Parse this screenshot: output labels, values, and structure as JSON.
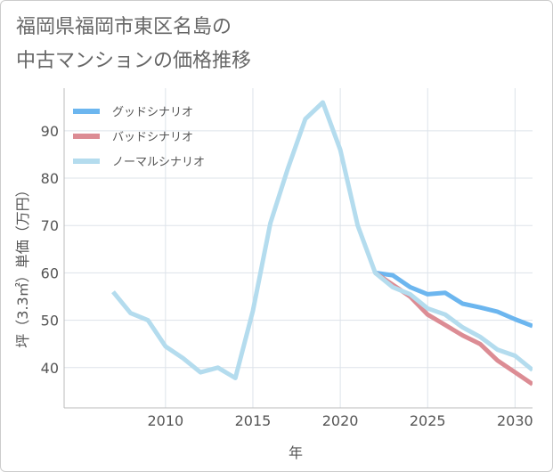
{
  "title_line1": "福岡県福岡市東区名島の",
  "title_line2": "中古マンションの価格推移",
  "chart_data": {
    "type": "line",
    "xlabel": "年",
    "ylabel": "坪（3.3㎡）単価（万円）",
    "xlim": [
      2004.2,
      2031.0
    ],
    "ylim": [
      31.5,
      99.0
    ],
    "x_ticks": [
      2010,
      2015,
      2020,
      2025,
      2030
    ],
    "y_ticks": [
      40,
      50,
      60,
      70,
      80,
      90
    ],
    "grid": true,
    "legend_position": "top-left",
    "series": [
      {
        "name": "グッドシナリオ",
        "color": "#6cb6ef",
        "x": [
          2022,
          2023,
          2024,
          2025,
          2026,
          2027,
          2028,
          2029,
          2030,
          2031
        ],
        "values": [
          60.0,
          59.5,
          57.0,
          55.5,
          55.8,
          53.5,
          52.7,
          51.8,
          50.2,
          48.8
        ]
      },
      {
        "name": "バッドシナリオ",
        "color": "#dc8c94",
        "x": [
          2022,
          2023,
          2024,
          2025,
          2026,
          2027,
          2028,
          2029,
          2030,
          2031
        ],
        "values": [
          60.0,
          57.5,
          55.0,
          51.2,
          49.0,
          46.8,
          45.0,
          41.5,
          39.0,
          36.5
        ]
      },
      {
        "name": "ノーマルシナリオ",
        "color": "#b4dcee",
        "x": [
          2007,
          2008,
          2009,
          2010,
          2011,
          2012,
          2013,
          2014,
          2015,
          2016,
          2017,
          2018,
          2019,
          2020,
          2021,
          2022,
          2023,
          2024,
          2025,
          2026,
          2027,
          2028,
          2029,
          2030,
          2031
        ],
        "values": [
          56.0,
          51.5,
          50.0,
          44.5,
          42.0,
          39.0,
          40.0,
          37.8,
          52.0,
          70.5,
          82.0,
          92.5,
          96.0,
          86.0,
          70.0,
          60.0,
          57.0,
          55.5,
          52.5,
          51.2,
          48.5,
          46.5,
          43.8,
          42.5,
          39.5
        ]
      }
    ]
  }
}
